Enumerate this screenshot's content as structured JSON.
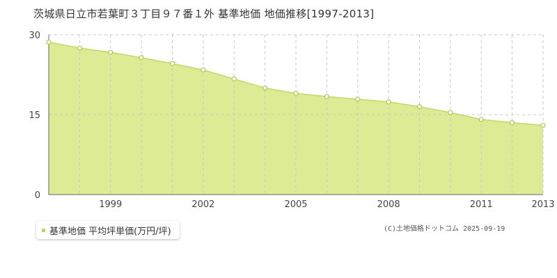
{
  "title": "茨城県日立市若葉町３丁目９７番１外 基準地価 地価推移[1997-2013]",
  "legend": {
    "label": "基準地価 平均坪単価(万円/坪)"
  },
  "credit": "(C)土地価格ドットコム 2025-09-19",
  "colors": {
    "fill": "#dceb94",
    "line": "#bfd96a",
    "marker_stroke": "#a8c94f",
    "grid": "#c8c8c8",
    "axis": "#666666",
    "legend_swatch": "#b6d757"
  },
  "chart_data": {
    "type": "area",
    "title": "",
    "xlabel": "",
    "ylabel": "",
    "x": [
      1997,
      1998,
      1999,
      2000,
      2001,
      2002,
      2003,
      2004,
      2005,
      2006,
      2007,
      2008,
      2009,
      2010,
      2011,
      2012,
      2013
    ],
    "series": [
      {
        "name": "基準地価 平均坪単価(万円/坪)",
        "values": [
          28.6,
          27.5,
          26.7,
          25.7,
          24.6,
          23.4,
          21.7,
          20.0,
          19.0,
          18.4,
          17.9,
          17.4,
          16.5,
          15.4,
          14.1,
          13.5,
          13.0
        ]
      }
    ],
    "xlim": [
      1997,
      2013
    ],
    "ylim": [
      0,
      30
    ],
    "yticks": [
      0,
      15,
      30
    ],
    "xtick_labels": [
      "1999",
      "2002",
      "2005",
      "2008",
      "2011",
      "2013"
    ],
    "grid": true,
    "legend_position": "bottom-left"
  }
}
